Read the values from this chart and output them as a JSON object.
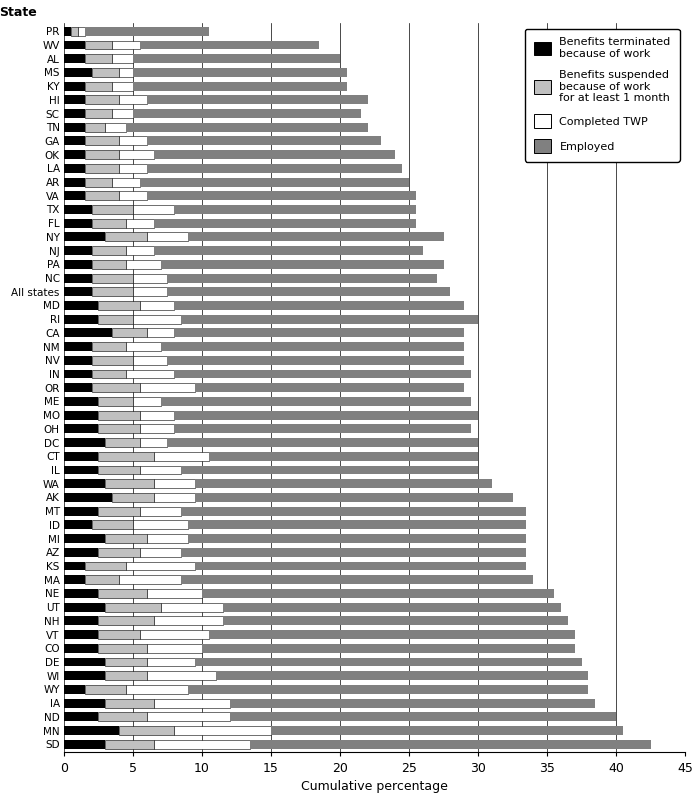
{
  "states": [
    "PR",
    "WV",
    "AL",
    "MS",
    "KY",
    "HI",
    "SC",
    "TN",
    "GA",
    "OK",
    "LA",
    "AR",
    "VA",
    "TX",
    "FL",
    "NY",
    "NJ",
    "PA",
    "NC",
    "All states",
    "MD",
    "RI",
    "CA",
    "NM",
    "NV",
    "IN",
    "OR",
    "ME",
    "MO",
    "OH",
    "DC",
    "CT",
    "IL",
    "WA",
    "AK",
    "MT",
    "ID",
    "MI",
    "AZ",
    "KS",
    "MA",
    "NE",
    "UT",
    "NH",
    "VT",
    "CO",
    "DE",
    "WI",
    "WY",
    "IA",
    "ND",
    "MN",
    "SD"
  ],
  "terminated": [
    0.5,
    1.5,
    1.5,
    2.0,
    1.5,
    1.5,
    1.5,
    1.5,
    1.5,
    1.5,
    1.5,
    1.5,
    1.5,
    2.0,
    2.0,
    3.0,
    2.0,
    2.0,
    2.0,
    2.0,
    2.5,
    2.5,
    3.5,
    2.0,
    2.0,
    2.0,
    2.0,
    2.5,
    2.5,
    2.5,
    3.0,
    2.5,
    2.5,
    3.0,
    3.5,
    2.5,
    2.0,
    3.0,
    2.5,
    1.5,
    1.5,
    2.5,
    3.0,
    2.5,
    2.5,
    2.5,
    3.0,
    3.0,
    1.5,
    3.0,
    2.5,
    4.0,
    3.0
  ],
  "suspended": [
    0.5,
    2.0,
    2.0,
    2.0,
    2.0,
    2.5,
    2.0,
    1.5,
    2.5,
    2.5,
    2.5,
    2.0,
    2.5,
    3.0,
    2.5,
    3.0,
    2.5,
    2.5,
    3.0,
    3.0,
    3.0,
    2.5,
    2.5,
    2.5,
    3.0,
    2.5,
    3.5,
    2.5,
    3.0,
    3.0,
    2.5,
    4.0,
    3.0,
    3.5,
    3.0,
    3.0,
    3.0,
    3.0,
    3.0,
    3.0,
    2.5,
    3.5,
    4.0,
    4.0,
    3.0,
    3.5,
    3.0,
    3.0,
    3.0,
    3.5,
    3.5,
    4.0,
    3.5
  ],
  "completed_twp": [
    0.5,
    2.0,
    1.5,
    1.0,
    1.5,
    2.0,
    1.5,
    1.5,
    2.0,
    2.5,
    2.0,
    2.0,
    2.0,
    3.0,
    2.0,
    3.0,
    2.0,
    2.5,
    2.5,
    2.5,
    2.5,
    3.5,
    2.0,
    2.5,
    2.5,
    3.5,
    4.0,
    2.0,
    2.5,
    2.5,
    2.0,
    4.0,
    3.0,
    3.0,
    3.0,
    3.0,
    4.0,
    3.0,
    3.0,
    5.0,
    4.5,
    4.0,
    4.5,
    5.0,
    5.0,
    4.0,
    3.5,
    5.0,
    4.5,
    5.5,
    6.0,
    7.0,
    7.0
  ],
  "employed": [
    9.0,
    13.0,
    15.0,
    15.5,
    15.5,
    16.0,
    16.5,
    17.5,
    17.0,
    17.5,
    18.5,
    19.5,
    19.5,
    17.5,
    19.0,
    18.5,
    19.5,
    20.5,
    19.5,
    20.5,
    21.0,
    21.5,
    21.0,
    22.0,
    21.5,
    21.5,
    19.5,
    22.5,
    22.0,
    21.5,
    22.5,
    19.5,
    21.5,
    21.5,
    23.0,
    25.0,
    24.5,
    24.5,
    25.0,
    24.0,
    25.5,
    25.5,
    24.5,
    25.0,
    26.5,
    27.0,
    28.0,
    27.0,
    29.0,
    26.5,
    28.0,
    25.5,
    29.0
  ],
  "colors": {
    "terminated": "#000000",
    "suspended": "#c0c0c0",
    "completed_twp": "#ffffff",
    "employed": "#808080"
  },
  "xlim": [
    0,
    45
  ],
  "xlabel": "Cumulative percentage",
  "title_ylabel": "State",
  "legend_labels": [
    "Benefits terminated\nbecause of work",
    "Benefits suspended\nbecause of work\nfor at least 1 month",
    "Completed TWP",
    "Employed"
  ],
  "xticks": [
    0,
    5,
    10,
    15,
    20,
    25,
    30,
    35,
    40,
    45
  ],
  "bar_height": 0.65
}
